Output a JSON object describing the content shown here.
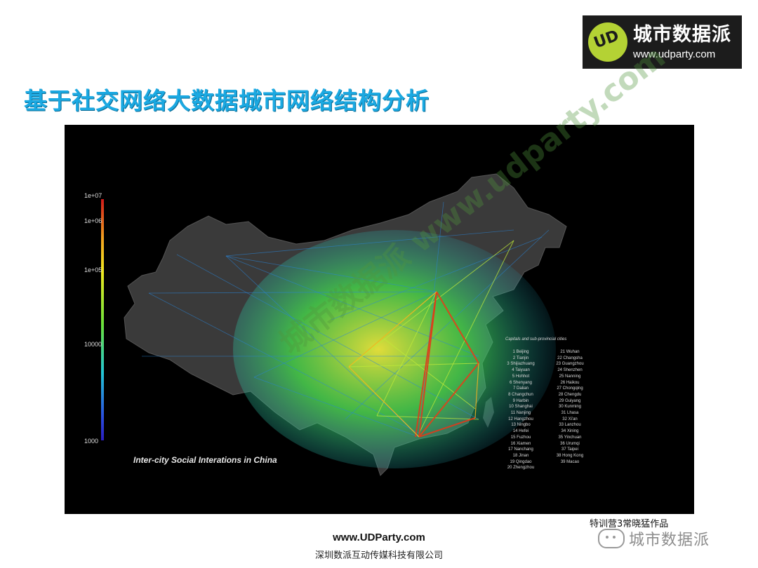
{
  "logo": {
    "brand": "城市数据派",
    "url": "www.udparty.com"
  },
  "title": "基于社交网络大数据城市网络结构分析",
  "map": {
    "caption": "Inter-city Social Interations in China",
    "scale_ticks": [
      "1e+07",
      "1e+06",
      "1e+05",
      "10000",
      "1000"
    ],
    "city_heading": "Capitals and sub-provincial cities",
    "cities_col1": [
      "1 Beijing",
      "2 Tianjin",
      "3 Shijiazhuang",
      "4 Taiyuan",
      "5 Hohhot",
      "6 Shenyang",
      "7 Dalian",
      "8 Changchun",
      "9 Harbin",
      "10 Shanghai",
      "11 Nanjing",
      "12 Hangzhou",
      "13 Ningbo",
      "14 Hefei",
      "15 Fuzhou",
      "16 Xiamen",
      "17 Nanchang",
      "18 Jinan",
      "19 Qingdao",
      "20 Zhengzhou"
    ],
    "cities_col2": [
      "21 Wuhan",
      "22 Changsha",
      "23 Guangzhou",
      "24 Shenzhen",
      "25 Nanning",
      "26 Haikou",
      "27 Chongqing",
      "28 Chengdu",
      "29 Guiyang",
      "30 Kunming",
      "31 Lhasa",
      "32 Xi'an",
      "33 Lanzhou",
      "34 Xining",
      "35 Yinchuan",
      "36 Urumqi",
      "37 Taipei",
      "38 Hong Kong",
      "39 Macao"
    ],
    "watermark": "城市数据派 www.udparty.com"
  },
  "credit": "特训营3常晓猛作品",
  "wechat_name": "城市数据派",
  "footer": {
    "url": "www.UDParty.com",
    "company": "深圳数派互动传媒科技有限公司"
  }
}
